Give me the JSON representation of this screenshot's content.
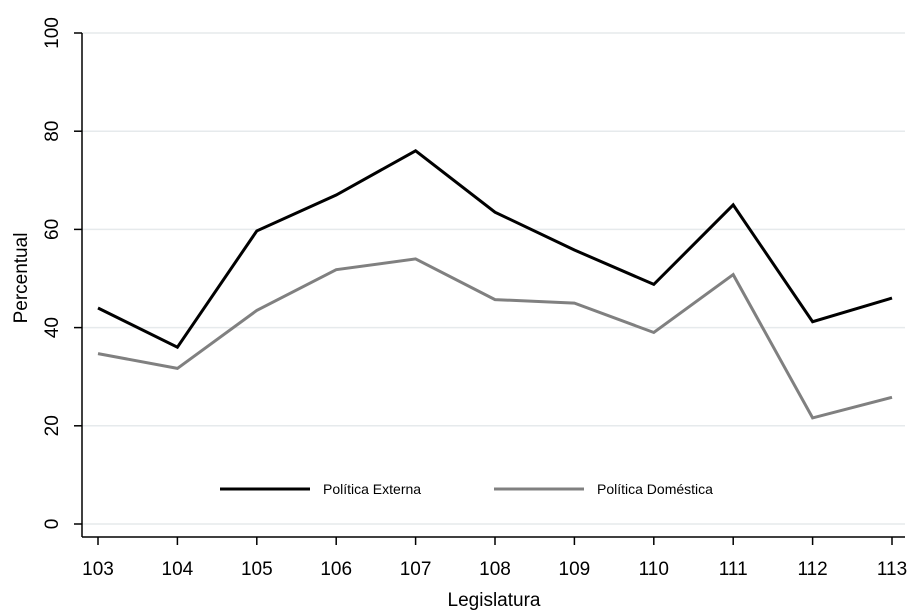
{
  "chart_data": {
    "type": "line",
    "title": "",
    "xlabel": "Legislatura",
    "ylabel": "Percentual",
    "x": [
      103,
      104,
      105,
      106,
      107,
      108,
      109,
      110,
      111,
      112,
      113
    ],
    "xticks": [
      "103",
      "104",
      "105",
      "106",
      "107",
      "108",
      "109",
      "110",
      "111",
      "112",
      "113"
    ],
    "yticks": [
      "0",
      "20",
      "40",
      "60",
      "80",
      "100"
    ],
    "ylim": [
      0,
      100
    ],
    "grid": true,
    "legend_position": "bottom-center",
    "series": [
      {
        "name": "Política Externa",
        "color": "#000000",
        "values": [
          44,
          36,
          59.7,
          67,
          76,
          63.5,
          55.8,
          48.8,
          65,
          41.2,
          46
        ]
      },
      {
        "name": "Política Doméstica",
        "color": "#808080",
        "values": [
          34.7,
          31.7,
          43.5,
          51.8,
          54,
          45.7,
          45,
          39,
          50.8,
          21.6,
          25.8
        ]
      }
    ]
  }
}
